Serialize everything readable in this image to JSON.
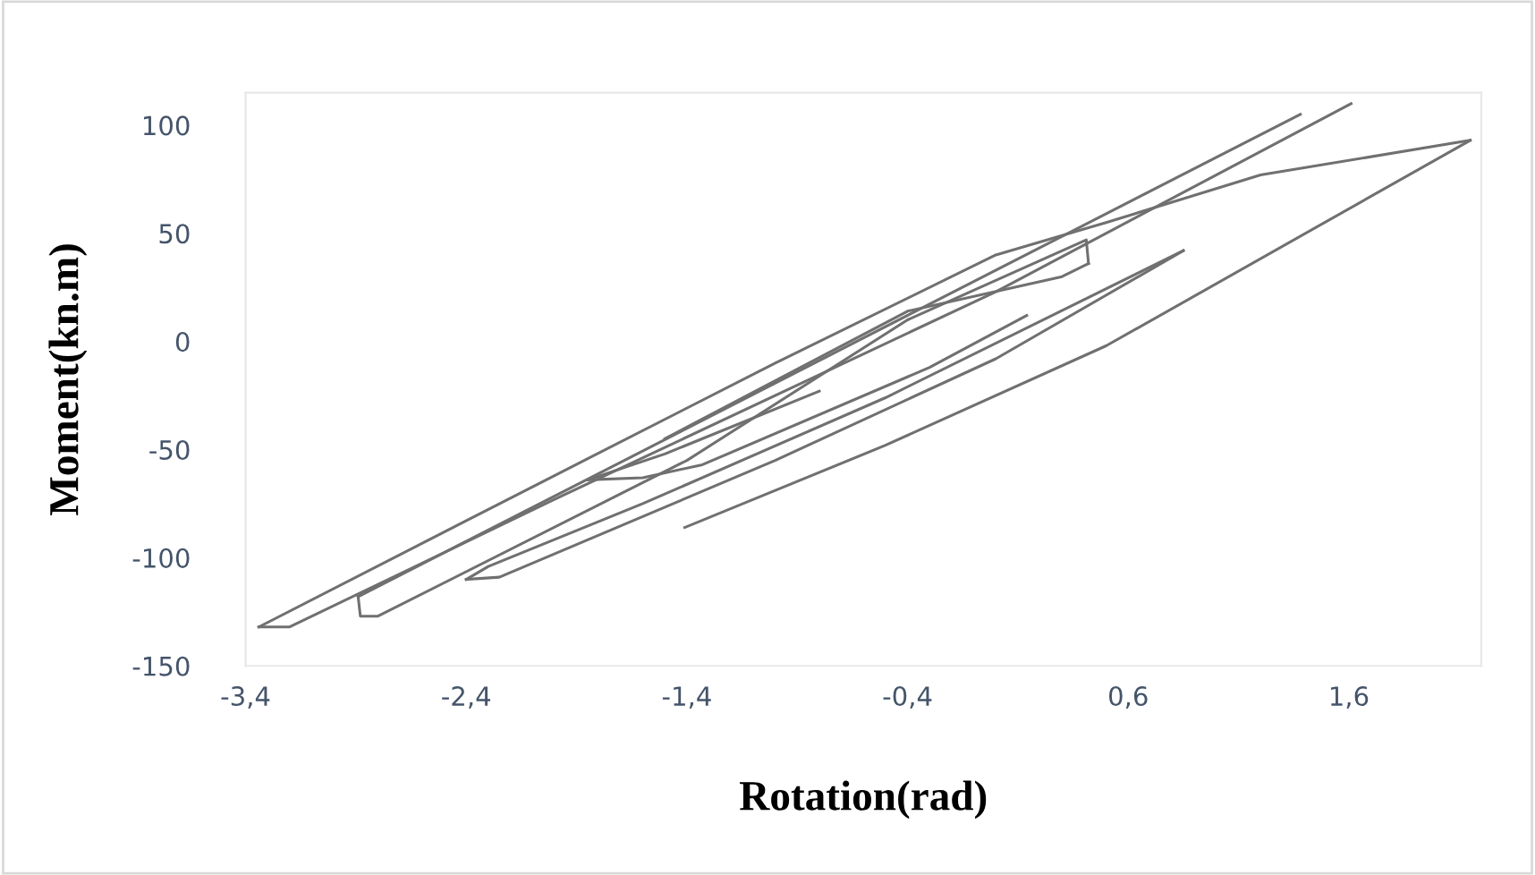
{
  "chart_data": {
    "type": "line",
    "xlabel": "Rotation(rad)",
    "ylabel": "Moment(kn.m)",
    "xlim": [
      -3.4,
      2.2
    ],
    "ylim": [
      -150,
      115
    ],
    "xticks": [
      {
        "value": -3.4,
        "label": "-3,4"
      },
      {
        "value": -2.4,
        "label": "-2,4"
      },
      {
        "value": -1.4,
        "label": "-1,4"
      },
      {
        "value": -0.4,
        "label": "-0,4"
      },
      {
        "value": 0.6,
        "label": "0,6"
      },
      {
        "value": 1.6,
        "label": "1,6"
      }
    ],
    "yticks": [
      -150,
      -100,
      -50,
      0,
      50,
      100
    ],
    "grid": false,
    "legend": false,
    "marker": "none",
    "line_style": "solid",
    "series": [
      {
        "color": "#707070",
        "x": [
          -1.85,
          -1.5,
          -0.8
        ],
        "values": [
          -64,
          -52,
          -23
        ]
      },
      {
        "color": "#707070",
        "x": [
          -1.85,
          -1.6,
          -1.33,
          -0.3,
          0.14
        ],
        "values": [
          -64,
          -63,
          -57,
          -12,
          12
        ]
      },
      {
        "color": "#707070",
        "x": [
          -2.4,
          -2.3,
          -1.6,
          -0.5,
          0.85
        ],
        "values": [
          -110,
          -104,
          -75,
          -26,
          42
        ]
      },
      {
        "color": "#707070",
        "x": [
          -2.4,
          -2.25,
          -1.0,
          0.0,
          0.85
        ],
        "values": [
          -110,
          -109,
          -55,
          -8,
          42
        ]
      },
      {
        "color": "#707070",
        "x": [
          -2.89,
          1.38
        ],
        "values": [
          -118,
          105
        ]
      },
      {
        "color": "#707070",
        "x": [
          -2.89,
          -2.88,
          -2.8,
          -1.4,
          -0.4,
          0.41,
          0.42
        ],
        "values": [
          -118,
          -127,
          -127,
          -55,
          10,
          47,
          36
        ]
      },
      {
        "color": "#707070",
        "x": [
          -1.5,
          -0.4,
          0.3,
          0.42
        ],
        "values": [
          -45,
          14,
          30,
          36
        ]
      },
      {
        "color": "#707070",
        "x": [
          -1.41,
          -0.5,
          0.5,
          2.15
        ],
        "values": [
          -86,
          -48,
          -2,
          93
        ]
      },
      {
        "color": "#707070",
        "x": [
          -3.34,
          -2.0,
          -1.0,
          0.0,
          0.5,
          1.2,
          2.15
        ],
        "values": [
          -132,
          -62,
          -10,
          40,
          55,
          77,
          93
        ]
      },
      {
        "color": "#707070",
        "x": [
          -3.34,
          -3.2,
          -2.0,
          0.0,
          1.61
        ],
        "values": [
          -132,
          -132,
          -73,
          23,
          110
        ]
      }
    ]
  }
}
